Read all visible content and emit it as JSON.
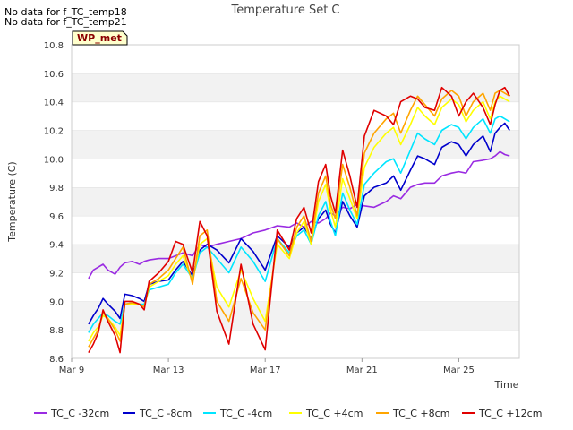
{
  "no_data_notes": [
    "No data for f_TC_temp18",
    "No data for f_TC_temp21"
  ],
  "badge_label": "WP_met",
  "chart_data": {
    "type": "line",
    "title": "Temperature Set C",
    "xlabel": "Time",
    "ylabel": "Temperature (C)",
    "xlim": [
      0,
      18.5
    ],
    "ylim": [
      8.6,
      10.8
    ],
    "x_ticks": [
      {
        "value": 0,
        "label": "Mar 9"
      },
      {
        "value": 4,
        "label": "Mar 13"
      },
      {
        "value": 8,
        "label": "Mar 17"
      },
      {
        "value": 12,
        "label": "Mar 21"
      },
      {
        "value": 16,
        "label": "Mar 25"
      }
    ],
    "y_ticks": [
      {
        "value": 8.6,
        "label": "8.6"
      },
      {
        "value": 8.8,
        "label": "8.8"
      },
      {
        "value": 9.0,
        "label": "9.0"
      },
      {
        "value": 9.2,
        "label": "9.2"
      },
      {
        "value": 9.4,
        "label": "9.4"
      },
      {
        "value": 9.6,
        "label": "9.6"
      },
      {
        "value": 9.8,
        "label": "9.8"
      },
      {
        "value": 10.0,
        "label": "10.0"
      },
      {
        "value": 10.2,
        "label": "10.2"
      },
      {
        "value": 10.4,
        "label": "10.4"
      },
      {
        "value": 10.6,
        "label": "10.6"
      },
      {
        "value": 10.8,
        "label": "10.8"
      }
    ],
    "grid": "horizontal bands",
    "legend_position": "bottom",
    "series": [
      {
        "name": "TC_C -32cm",
        "color": "#9a2be2",
        "x": [
          0.7,
          0.9,
          1.1,
          1.3,
          1.5,
          1.8,
          2.0,
          2.2,
          2.5,
          2.8,
          3.0,
          3.2,
          3.6,
          4.0,
          4.3,
          4.6,
          5.0,
          5.3,
          5.6,
          6.0,
          6.5,
          7.0,
          7.5,
          8.0,
          8.5,
          9.0,
          9.3,
          9.6,
          9.9,
          10.2,
          10.5,
          10.7,
          10.9,
          11.2,
          11.5,
          11.8,
          12.1,
          12.5,
          13.0,
          13.3,
          13.6,
          14.0,
          14.3,
          14.6,
          15.0,
          15.3,
          15.7,
          16.0,
          16.3,
          16.6,
          17.0,
          17.3,
          17.5,
          17.7,
          17.9,
          18.1
        ],
        "values": [
          9.16,
          9.22,
          9.24,
          9.26,
          9.22,
          9.19,
          9.24,
          9.27,
          9.28,
          9.26,
          9.28,
          9.29,
          9.3,
          9.3,
          9.32,
          9.34,
          9.32,
          9.4,
          9.38,
          9.4,
          9.42,
          9.44,
          9.48,
          9.5,
          9.53,
          9.52,
          9.55,
          9.52,
          9.56,
          9.55,
          9.58,
          9.62,
          9.6,
          9.66,
          9.65,
          9.68,
          9.67,
          9.66,
          9.7,
          9.74,
          9.72,
          9.8,
          9.82,
          9.83,
          9.83,
          9.88,
          9.9,
          9.91,
          9.9,
          9.98,
          9.99,
          10.0,
          10.02,
          10.05,
          10.03,
          10.02
        ]
      },
      {
        "name": "TC_C -8cm",
        "color": "#0000cc",
        "x": [
          0.7,
          0.9,
          1.1,
          1.3,
          1.5,
          1.8,
          2.0,
          2.2,
          2.5,
          2.8,
          3.0,
          3.2,
          3.6,
          4.0,
          4.3,
          4.6,
          5.0,
          5.3,
          5.6,
          6.0,
          6.5,
          7.0,
          7.5,
          8.0,
          8.5,
          9.0,
          9.3,
          9.6,
          9.9,
          10.2,
          10.5,
          10.7,
          10.9,
          11.2,
          11.5,
          11.8,
          12.1,
          12.5,
          13.0,
          13.3,
          13.6,
          14.0,
          14.3,
          14.6,
          15.0,
          15.3,
          15.7,
          16.0,
          16.3,
          16.6,
          17.0,
          17.3,
          17.5,
          17.7,
          17.9,
          18.1
        ],
        "values": [
          8.84,
          8.9,
          8.95,
          9.02,
          8.98,
          8.93,
          8.88,
          9.05,
          9.04,
          9.02,
          9.0,
          9.12,
          9.14,
          9.15,
          9.22,
          9.28,
          9.18,
          9.36,
          9.4,
          9.36,
          9.27,
          9.44,
          9.35,
          9.22,
          9.46,
          9.38,
          9.48,
          9.52,
          9.44,
          9.58,
          9.64,
          9.54,
          9.48,
          9.7,
          9.6,
          9.52,
          9.74,
          9.8,
          9.83,
          9.88,
          9.78,
          9.92,
          10.02,
          10.0,
          9.96,
          10.08,
          10.12,
          10.1,
          10.02,
          10.1,
          10.16,
          10.05,
          10.18,
          10.22,
          10.25,
          10.2
        ]
      },
      {
        "name": "TC_C -4cm",
        "color": "#00e5ff",
        "x": [
          0.7,
          0.9,
          1.1,
          1.3,
          1.5,
          1.8,
          2.0,
          2.2,
          2.5,
          2.8,
          3.0,
          3.2,
          3.6,
          4.0,
          4.3,
          4.6,
          5.0,
          5.3,
          5.6,
          6.0,
          6.5,
          7.0,
          7.5,
          8.0,
          8.5,
          9.0,
          9.3,
          9.6,
          9.9,
          10.2,
          10.5,
          10.7,
          10.9,
          11.2,
          11.5,
          11.8,
          12.1,
          12.5,
          13.0,
          13.3,
          13.6,
          14.0,
          14.3,
          14.6,
          15.0,
          15.3,
          15.7,
          16.0,
          16.3,
          16.6,
          17.0,
          17.3,
          17.5,
          17.7,
          17.9,
          18.1
        ],
        "values": [
          8.78,
          8.84,
          8.88,
          8.92,
          8.9,
          8.86,
          8.84,
          8.98,
          8.99,
          8.98,
          8.98,
          9.08,
          9.1,
          9.12,
          9.2,
          9.26,
          9.16,
          9.34,
          9.38,
          9.3,
          9.2,
          9.38,
          9.28,
          9.14,
          9.44,
          9.34,
          9.46,
          9.5,
          9.4,
          9.6,
          9.7,
          9.56,
          9.46,
          9.76,
          9.64,
          9.54,
          9.82,
          9.9,
          9.98,
          10.0,
          9.9,
          10.06,
          10.18,
          10.14,
          10.1,
          10.2,
          10.24,
          10.22,
          10.14,
          10.22,
          10.28,
          10.18,
          10.28,
          10.3,
          10.28,
          10.26
        ]
      },
      {
        "name": "TC_C +4cm",
        "color": "#ffff00",
        "x": [
          0.7,
          0.9,
          1.1,
          1.3,
          1.5,
          1.8,
          2.0,
          2.2,
          2.5,
          2.8,
          3.0,
          3.2,
          3.6,
          4.0,
          4.3,
          4.6,
          5.0,
          5.3,
          5.6,
          6.0,
          6.5,
          7.0,
          7.5,
          8.0,
          8.5,
          9.0,
          9.3,
          9.6,
          9.9,
          10.2,
          10.5,
          10.7,
          10.9,
          11.2,
          11.5,
          11.8,
          12.1,
          12.5,
          13.0,
          13.3,
          13.6,
          14.0,
          14.3,
          14.6,
          15.0,
          15.3,
          15.7,
          16.0,
          16.3,
          16.6,
          17.0,
          17.3,
          17.5,
          17.7,
          17.9,
          18.1
        ],
        "values": [
          8.72,
          8.78,
          8.82,
          8.9,
          8.88,
          8.82,
          8.76,
          8.98,
          8.98,
          8.98,
          8.96,
          9.1,
          9.14,
          9.18,
          9.26,
          9.32,
          9.14,
          9.4,
          9.44,
          9.1,
          8.96,
          9.22,
          9.02,
          8.86,
          9.4,
          9.3,
          9.48,
          9.56,
          9.4,
          9.7,
          9.82,
          9.64,
          9.52,
          9.86,
          9.72,
          9.58,
          9.94,
          10.08,
          10.18,
          10.22,
          10.1,
          10.24,
          10.36,
          10.3,
          10.24,
          10.36,
          10.42,
          10.38,
          10.26,
          10.34,
          10.4,
          10.28,
          10.4,
          10.44,
          10.42,
          10.4
        ]
      },
      {
        "name": "TC_C +8cm",
        "color": "#ffa500",
        "x": [
          0.7,
          0.9,
          1.1,
          1.3,
          1.5,
          1.8,
          2.0,
          2.2,
          2.5,
          2.8,
          3.0,
          3.2,
          3.6,
          4.0,
          4.3,
          4.6,
          5.0,
          5.3,
          5.6,
          6.0,
          6.5,
          7.0,
          7.5,
          8.0,
          8.5,
          9.0,
          9.3,
          9.6,
          9.9,
          10.2,
          10.5,
          10.7,
          10.9,
          11.2,
          11.5,
          11.8,
          12.1,
          12.5,
          13.0,
          13.3,
          13.6,
          14.0,
          14.3,
          14.6,
          15.0,
          15.3,
          15.7,
          16.0,
          16.3,
          16.6,
          17.0,
          17.3,
          17.5,
          17.7,
          17.9,
          18.1
        ],
        "values": [
          8.68,
          8.74,
          8.8,
          8.92,
          8.88,
          8.8,
          8.72,
          8.98,
          8.99,
          8.98,
          8.96,
          9.12,
          9.16,
          9.22,
          9.3,
          9.38,
          9.12,
          9.46,
          9.5,
          9.0,
          8.86,
          9.16,
          8.92,
          8.8,
          9.44,
          9.32,
          9.52,
          9.6,
          9.42,
          9.76,
          9.88,
          9.68,
          9.58,
          9.96,
          9.8,
          9.6,
          10.04,
          10.18,
          10.28,
          10.32,
          10.18,
          10.34,
          10.44,
          10.38,
          10.3,
          10.42,
          10.48,
          10.44,
          10.3,
          10.4,
          10.46,
          10.34,
          10.46,
          10.48,
          10.46,
          10.44
        ]
      },
      {
        "name": "TC_C +12cm",
        "color": "#e00000",
        "x": [
          0.7,
          0.9,
          1.1,
          1.3,
          1.5,
          1.8,
          2.0,
          2.2,
          2.5,
          2.8,
          3.0,
          3.2,
          3.6,
          4.0,
          4.3,
          4.6,
          5.0,
          5.3,
          5.6,
          6.0,
          6.5,
          7.0,
          7.5,
          8.0,
          8.5,
          9.0,
          9.3,
          9.6,
          9.9,
          10.2,
          10.5,
          10.7,
          10.9,
          11.2,
          11.5,
          11.8,
          12.1,
          12.5,
          13.0,
          13.3,
          13.6,
          14.0,
          14.3,
          14.6,
          15.0,
          15.3,
          15.7,
          16.0,
          16.3,
          16.6,
          17.0,
          17.3,
          17.5,
          17.7,
          17.9,
          18.1
        ],
        "values": [
          8.64,
          8.7,
          8.78,
          8.94,
          8.86,
          8.76,
          8.64,
          9.0,
          9.0,
          8.98,
          8.94,
          9.14,
          9.2,
          9.28,
          9.42,
          9.4,
          9.2,
          9.56,
          9.46,
          8.93,
          8.7,
          9.26,
          8.84,
          8.66,
          9.5,
          9.36,
          9.58,
          9.66,
          9.48,
          9.84,
          9.96,
          9.74,
          9.62,
          10.06,
          9.88,
          9.66,
          10.16,
          10.34,
          10.3,
          10.24,
          10.4,
          10.44,
          10.42,
          10.36,
          10.34,
          10.5,
          10.44,
          10.3,
          10.4,
          10.46,
          10.36,
          10.24,
          10.38,
          10.48,
          10.5,
          10.44
        ]
      }
    ]
  }
}
